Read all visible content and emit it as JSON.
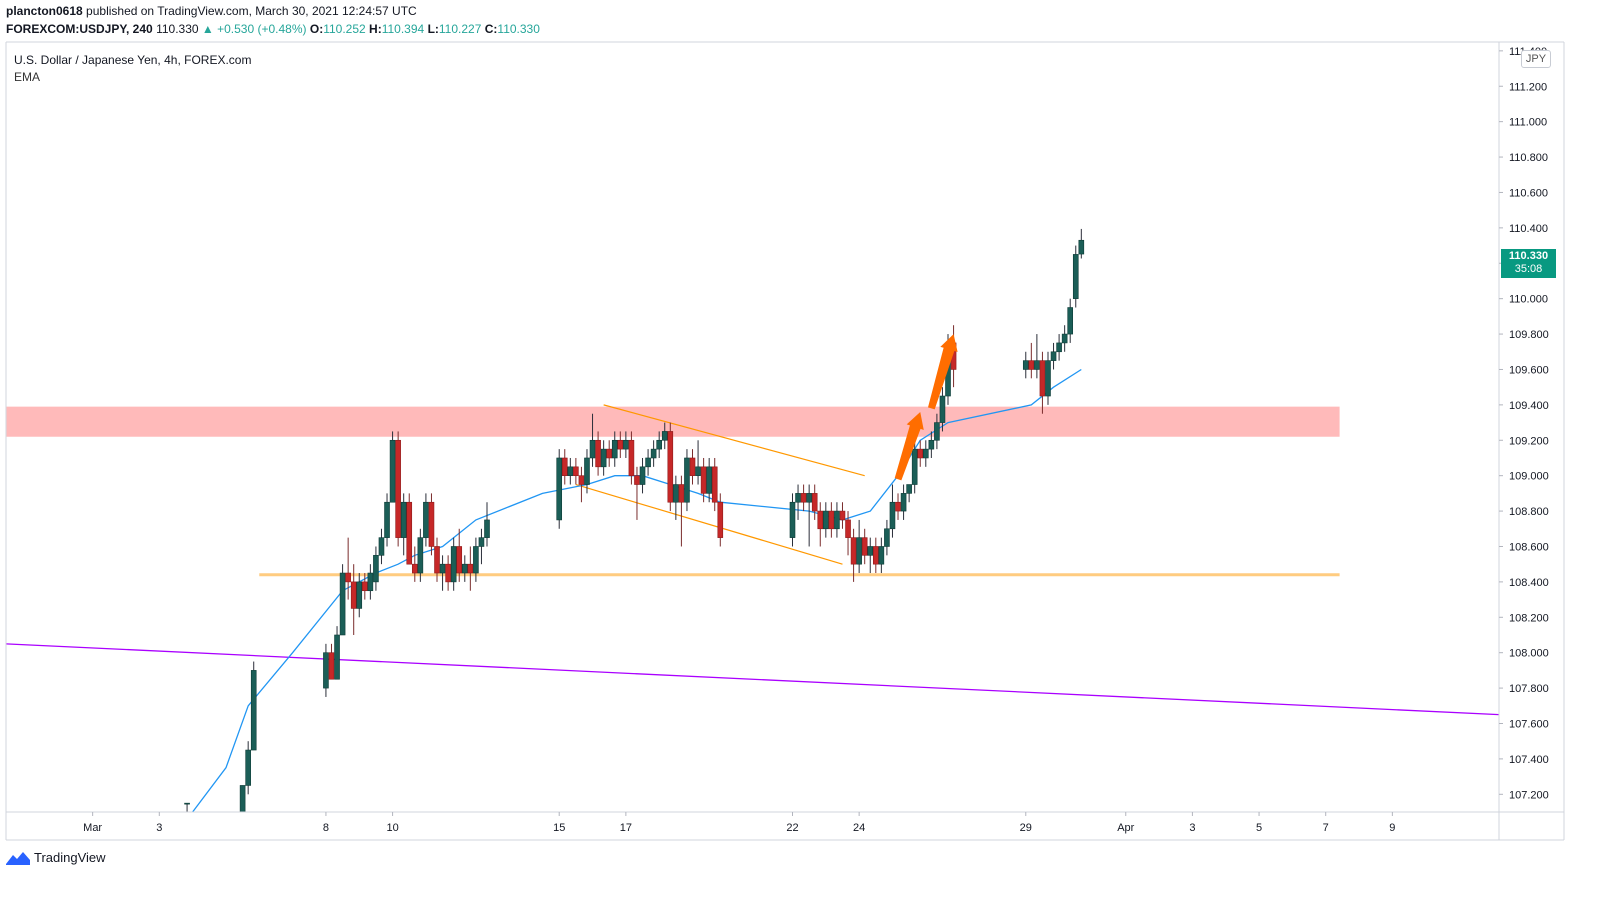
{
  "header": {
    "user": "plancton0618",
    "published": "published on TradingView.com, March 30, 2021 12:24:57 UTC",
    "symbol": "FOREXCOM:USDJPY, 240",
    "last": "110.330",
    "change": "▲ +0.530 (+0.48%)",
    "o_label": "O:",
    "o_value": "110.252",
    "h_label": "H:",
    "h_value": "110.394",
    "l_label": "L:",
    "l_value": "110.227",
    "c_label": "C:",
    "c_value": "110.330"
  },
  "legend": {
    "title": "U.S. Dollar / Japanese Yen, 4h, FOREX.com",
    "indicator": "EMA"
  },
  "currency_badge": "JPY",
  "price_tag": {
    "price": "110.330",
    "countdown": "35:08"
  },
  "footer": {
    "brand": "TradingView"
  },
  "colors": {
    "up": "#26a69a",
    "down": "#ef5350",
    "wick": "#555555",
    "ema": "#2196f3",
    "resistance_zone": "#ffb3b3",
    "support_line": "#ffcc80",
    "trend_line": "#aa00ff",
    "channel": "#ff9800",
    "arrows": "#ff6d00"
  },
  "chart_data": {
    "type": "candlestick",
    "title": "U.S. Dollar / Japanese Yen, 4h, FOREX.com",
    "interval": "4h",
    "ylim": [
      107.1,
      111.45
    ],
    "y_ticks": [
      "111.400",
      "111.200",
      "111.000",
      "110.800",
      "110.600",
      "110.400",
      "110.200",
      "110.000",
      "109.800",
      "109.600",
      "109.400",
      "109.200",
      "109.000",
      "108.800",
      "108.600",
      "108.400",
      "108.200",
      "108.000",
      "107.800",
      "107.600",
      "107.400",
      "107.200"
    ],
    "x_ticks": [
      "Mar",
      "3",
      "8",
      "10",
      "15",
      "17",
      "22",
      "24",
      "29",
      "Apr",
      "3",
      "5",
      "7",
      "9"
    ],
    "x_dates": [
      "2021-03-01",
      "2021-03-03",
      "2021-03-08",
      "2021-03-10",
      "2021-03-15",
      "2021-03-17",
      "2021-03-22",
      "2021-03-24",
      "2021-03-29",
      "2021-04-01",
      "2021-04-03",
      "2021-04-05",
      "2021-04-07",
      "2021-04-09"
    ],
    "candles": [
      {
        "t": "2021-03-03 20:00",
        "o": 107.15,
        "h": 107.15,
        "l": 107.1,
        "c": 107.15
      },
      {
        "t": "2021-03-05 12:00",
        "o": 107.1,
        "h": 107.25,
        "l": 107.1,
        "c": 107.25
      },
      {
        "t": "2021-03-05 16:00",
        "o": 107.25,
        "h": 107.5,
        "l": 107.2,
        "c": 107.45
      },
      {
        "t": "2021-03-05 20:00",
        "o": 107.45,
        "h": 107.95,
        "l": 107.45,
        "c": 107.9
      },
      {
        "t": "2021-03-08 00:00",
        "o": 107.8,
        "h": 108.05,
        "l": 107.75,
        "c": 108.0
      },
      {
        "t": "2021-03-08 04:00",
        "o": 108.0,
        "h": 108.05,
        "l": 107.85,
        "c": 107.85
      },
      {
        "t": "2021-03-08 08:00",
        "o": 107.85,
        "h": 108.15,
        "l": 107.85,
        "c": 108.1
      },
      {
        "t": "2021-03-08 12:00",
        "o": 108.1,
        "h": 108.5,
        "l": 108.1,
        "c": 108.45
      },
      {
        "t": "2021-03-08 16:00",
        "o": 108.45,
        "h": 108.65,
        "l": 108.3,
        "c": 108.4
      },
      {
        "t": "2021-03-08 20:00",
        "o": 108.4,
        "h": 108.5,
        "l": 108.1,
        "c": 108.25
      },
      {
        "t": "2021-03-09 00:00",
        "o": 108.25,
        "h": 108.45,
        "l": 108.2,
        "c": 108.4
      },
      {
        "t": "2021-03-09 04:00",
        "o": 108.4,
        "h": 108.45,
        "l": 108.3,
        "c": 108.35
      },
      {
        "t": "2021-03-09 08:00",
        "o": 108.35,
        "h": 108.5,
        "l": 108.3,
        "c": 108.45
      },
      {
        "t": "2021-03-09 12:00",
        "o": 108.4,
        "h": 108.6,
        "l": 108.35,
        "c": 108.55
      },
      {
        "t": "2021-03-09 16:00",
        "o": 108.55,
        "h": 108.7,
        "l": 108.5,
        "c": 108.65
      },
      {
        "t": "2021-03-09 20:00",
        "o": 108.65,
        "h": 108.9,
        "l": 108.6,
        "c": 108.85
      },
      {
        "t": "2021-03-10 00:00",
        "o": 108.85,
        "h": 109.25,
        "l": 108.85,
        "c": 109.2
      },
      {
        "t": "2021-03-10 04:00",
        "o": 109.2,
        "h": 109.25,
        "l": 108.6,
        "c": 108.65
      },
      {
        "t": "2021-03-10 08:00",
        "o": 108.65,
        "h": 108.9,
        "l": 108.55,
        "c": 108.85
      },
      {
        "t": "2021-03-10 12:00",
        "o": 108.85,
        "h": 108.9,
        "l": 108.5,
        "c": 108.5
      },
      {
        "t": "2021-03-10 16:00",
        "o": 108.5,
        "h": 108.6,
        "l": 108.4,
        "c": 108.45
      },
      {
        "t": "2021-03-10 20:00",
        "o": 108.45,
        "h": 108.7,
        "l": 108.4,
        "c": 108.65
      },
      {
        "t": "2021-03-11 00:00",
        "o": 108.65,
        "h": 108.9,
        "l": 108.6,
        "c": 108.85
      },
      {
        "t": "2021-03-11 04:00",
        "o": 108.85,
        "h": 108.9,
        "l": 108.55,
        "c": 108.6
      },
      {
        "t": "2021-03-11 08:00",
        "o": 108.6,
        "h": 108.65,
        "l": 108.4,
        "c": 108.45
      },
      {
        "t": "2021-03-11 12:00",
        "o": 108.45,
        "h": 108.55,
        "l": 108.35,
        "c": 108.5
      },
      {
        "t": "2021-03-11 16:00",
        "o": 108.5,
        "h": 108.55,
        "l": 108.35,
        "c": 108.4
      },
      {
        "t": "2021-03-11 20:00",
        "o": 108.4,
        "h": 108.65,
        "l": 108.35,
        "c": 108.6
      },
      {
        "t": "2021-03-12 00:00",
        "o": 108.6,
        "h": 108.7,
        "l": 108.4,
        "c": 108.45
      },
      {
        "t": "2021-03-12 04:00",
        "o": 108.45,
        "h": 108.55,
        "l": 108.4,
        "c": 108.5
      },
      {
        "t": "2021-03-12 08:00",
        "o": 108.5,
        "h": 108.6,
        "l": 108.35,
        "c": 108.45
      },
      {
        "t": "2021-03-12 12:00",
        "o": 108.45,
        "h": 108.65,
        "l": 108.4,
        "c": 108.6
      },
      {
        "t": "2021-03-12 16:00",
        "o": 108.6,
        "h": 108.7,
        "l": 108.5,
        "c": 108.65
      },
      {
        "t": "2021-03-12 20:00",
        "o": 108.65,
        "h": 108.85,
        "l": 108.6,
        "c": 108.75
      },
      {
        "t": "2021-03-15 00:00",
        "o": 108.75,
        "h": 109.15,
        "l": 108.7,
        "c": 109.1
      },
      {
        "t": "2021-03-15 04:00",
        "o": 109.1,
        "h": 109.15,
        "l": 108.95,
        "c": 109.0
      },
      {
        "t": "2021-03-15 08:00",
        "o": 109.0,
        "h": 109.1,
        "l": 108.95,
        "c": 109.05
      },
      {
        "t": "2021-03-15 12:00",
        "o": 109.05,
        "h": 109.1,
        "l": 108.95,
        "c": 109.0
      },
      {
        "t": "2021-03-15 16:00",
        "o": 109.0,
        "h": 109.05,
        "l": 108.85,
        "c": 108.95
      },
      {
        "t": "2021-03-15 20:00",
        "o": 108.95,
        "h": 109.15,
        "l": 108.9,
        "c": 109.1
      },
      {
        "t": "2021-03-16 00:00",
        "o": 109.1,
        "h": 109.35,
        "l": 109.05,
        "c": 109.2
      },
      {
        "t": "2021-03-16 04:00",
        "o": 109.2,
        "h": 109.25,
        "l": 109.0,
        "c": 109.05
      },
      {
        "t": "2021-03-16 08:00",
        "o": 109.05,
        "h": 109.2,
        "l": 109.0,
        "c": 109.15
      },
      {
        "t": "2021-03-16 12:00",
        "o": 109.15,
        "h": 109.2,
        "l": 109.05,
        "c": 109.1
      },
      {
        "t": "2021-03-16 16:00",
        "o": 109.1,
        "h": 109.25,
        "l": 109.05,
        "c": 109.2
      },
      {
        "t": "2021-03-16 20:00",
        "o": 109.2,
        "h": 109.25,
        "l": 109.1,
        "c": 109.15
      },
      {
        "t": "2021-03-17 00:00",
        "o": 109.15,
        "h": 109.25,
        "l": 109.1,
        "c": 109.2
      },
      {
        "t": "2021-03-17 04:00",
        "o": 109.2,
        "h": 109.25,
        "l": 108.95,
        "c": 109.0
      },
      {
        "t": "2021-03-17 08:00",
        "o": 109.0,
        "h": 109.05,
        "l": 108.75,
        "c": 108.95
      },
      {
        "t": "2021-03-17 12:00",
        "o": 108.95,
        "h": 109.1,
        "l": 108.9,
        "c": 109.05
      },
      {
        "t": "2021-03-17 16:00",
        "o": 109.05,
        "h": 109.15,
        "l": 109.0,
        "c": 109.1
      },
      {
        "t": "2021-03-17 20:00",
        "o": 109.1,
        "h": 109.2,
        "l": 109.05,
        "c": 109.15
      },
      {
        "t": "2021-03-18 00:00",
        "o": 109.15,
        "h": 109.25,
        "l": 109.1,
        "c": 109.2
      },
      {
        "t": "2021-03-18 04:00",
        "o": 109.2,
        "h": 109.3,
        "l": 109.15,
        "c": 109.25
      },
      {
        "t": "2021-03-18 08:00",
        "o": 109.25,
        "h": 109.3,
        "l": 108.8,
        "c": 108.85
      },
      {
        "t": "2021-03-18 12:00",
        "o": 108.85,
        "h": 109.0,
        "l": 108.75,
        "c": 108.95
      },
      {
        "t": "2021-03-18 16:00",
        "o": 108.95,
        "h": 109.0,
        "l": 108.6,
        "c": 108.85
      },
      {
        "t": "2021-03-18 20:00",
        "o": 108.85,
        "h": 109.15,
        "l": 108.8,
        "c": 109.1
      },
      {
        "t": "2021-03-19 00:00",
        "o": 109.1,
        "h": 109.15,
        "l": 108.95,
        "c": 109.0
      },
      {
        "t": "2021-03-19 04:00",
        "o": 109.0,
        "h": 109.2,
        "l": 108.95,
        "c": 109.05
      },
      {
        "t": "2021-03-19 08:00",
        "o": 109.05,
        "h": 109.1,
        "l": 108.85,
        "c": 108.9
      },
      {
        "t": "2021-03-19 12:00",
        "o": 108.9,
        "h": 109.1,
        "l": 108.85,
        "c": 109.05
      },
      {
        "t": "2021-03-19 16:00",
        "o": 109.05,
        "h": 109.1,
        "l": 108.8,
        "c": 108.85
      },
      {
        "t": "2021-03-19 20:00",
        "o": 108.85,
        "h": 108.9,
        "l": 108.6,
        "c": 108.65
      },
      {
        "t": "2021-03-22 00:00",
        "o": 108.65,
        "h": 108.9,
        "l": 108.6,
        "c": 108.85
      },
      {
        "t": "2021-03-22 04:00",
        "o": 108.85,
        "h": 108.95,
        "l": 108.75,
        "c": 108.9
      },
      {
        "t": "2021-03-22 08:00",
        "o": 108.9,
        "h": 108.95,
        "l": 108.8,
        "c": 108.85
      },
      {
        "t": "2021-03-22 12:00",
        "o": 108.85,
        "h": 108.95,
        "l": 108.6,
        "c": 108.9
      },
      {
        "t": "2021-03-22 16:00",
        "o": 108.9,
        "h": 108.95,
        "l": 108.75,
        "c": 108.8
      },
      {
        "t": "2021-03-22 20:00",
        "o": 108.8,
        "h": 108.85,
        "l": 108.6,
        "c": 108.7
      },
      {
        "t": "2021-03-23 00:00",
        "o": 108.7,
        "h": 108.85,
        "l": 108.65,
        "c": 108.8
      },
      {
        "t": "2021-03-23 04:00",
        "o": 108.8,
        "h": 108.85,
        "l": 108.65,
        "c": 108.7
      },
      {
        "t": "2021-03-23 08:00",
        "o": 108.7,
        "h": 108.85,
        "l": 108.65,
        "c": 108.8
      },
      {
        "t": "2021-03-23 12:00",
        "o": 108.8,
        "h": 108.85,
        "l": 108.7,
        "c": 108.75
      },
      {
        "t": "2021-03-23 16:00",
        "o": 108.75,
        "h": 108.8,
        "l": 108.55,
        "c": 108.65
      },
      {
        "t": "2021-03-23 20:00",
        "o": 108.65,
        "h": 108.7,
        "l": 108.4,
        "c": 108.5
      },
      {
        "t": "2021-03-24 00:00",
        "o": 108.5,
        "h": 108.75,
        "l": 108.45,
        "c": 108.65
      },
      {
        "t": "2021-03-24 04:00",
        "o": 108.65,
        "h": 108.7,
        "l": 108.5,
        "c": 108.55
      },
      {
        "t": "2021-03-24 08:00",
        "o": 108.55,
        "h": 108.65,
        "l": 108.45,
        "c": 108.6
      },
      {
        "t": "2021-03-24 12:00",
        "o": 108.6,
        "h": 108.65,
        "l": 108.45,
        "c": 108.5
      },
      {
        "t": "2021-03-24 16:00",
        "o": 108.5,
        "h": 108.65,
        "l": 108.45,
        "c": 108.6
      },
      {
        "t": "2021-03-24 20:00",
        "o": 108.6,
        "h": 108.75,
        "l": 108.55,
        "c": 108.7
      },
      {
        "t": "2021-03-25 00:00",
        "o": 108.7,
        "h": 108.95,
        "l": 108.65,
        "c": 108.85
      },
      {
        "t": "2021-03-25 04:00",
        "o": 108.85,
        "h": 108.9,
        "l": 108.75,
        "c": 108.8
      },
      {
        "t": "2021-03-25 08:00",
        "o": 108.8,
        "h": 108.95,
        "l": 108.75,
        "c": 108.9
      },
      {
        "t": "2021-03-25 12:00",
        "o": 108.9,
        "h": 108.95,
        "l": 108.85,
        "c": 108.95
      },
      {
        "t": "2021-03-25 16:00",
        "o": 108.95,
        "h": 109.2,
        "l": 108.9,
        "c": 109.15
      },
      {
        "t": "2021-03-25 20:00",
        "o": 109.15,
        "h": 109.2,
        "l": 109.05,
        "c": 109.1
      },
      {
        "t": "2021-03-26 00:00",
        "o": 109.1,
        "h": 109.2,
        "l": 109.05,
        "c": 109.15
      },
      {
        "t": "2021-03-26 04:00",
        "o": 109.15,
        "h": 109.25,
        "l": 109.1,
        "c": 109.2
      },
      {
        "t": "2021-03-26 08:00",
        "o": 109.2,
        "h": 109.35,
        "l": 109.15,
        "c": 109.3
      },
      {
        "t": "2021-03-26 12:00",
        "o": 109.3,
        "h": 109.5,
        "l": 109.25,
        "c": 109.45
      },
      {
        "t": "2021-03-26 16:00",
        "o": 109.45,
        "h": 109.8,
        "l": 109.4,
        "c": 109.75
      },
      {
        "t": "2021-03-26 20:00",
        "o": 109.75,
        "h": 109.85,
        "l": 109.5,
        "c": 109.6
      },
      {
        "t": "2021-03-29 00:00",
        "o": 109.6,
        "h": 109.7,
        "l": 109.55,
        "c": 109.65
      },
      {
        "t": "2021-03-29 04:00",
        "o": 109.65,
        "h": 109.75,
        "l": 109.55,
        "c": 109.6
      },
      {
        "t": "2021-03-29 08:00",
        "o": 109.6,
        "h": 109.8,
        "l": 109.55,
        "c": 109.65
      },
      {
        "t": "2021-03-29 12:00",
        "o": 109.65,
        "h": 109.7,
        "l": 109.35,
        "c": 109.45
      },
      {
        "t": "2021-03-29 16:00",
        "o": 109.45,
        "h": 109.7,
        "l": 109.4,
        "c": 109.65
      },
      {
        "t": "2021-03-29 20:00",
        "o": 109.65,
        "h": 109.75,
        "l": 109.6,
        "c": 109.7
      },
      {
        "t": "2021-03-30 00:00",
        "o": 109.7,
        "h": 109.8,
        "l": 109.65,
        "c": 109.75
      },
      {
        "t": "2021-03-30 04:00",
        "o": 109.75,
        "h": 109.85,
        "l": 109.7,
        "c": 109.8
      },
      {
        "t": "2021-03-30 08:00",
        "o": 109.8,
        "h": 110.0,
        "l": 109.75,
        "c": 109.95
      },
      {
        "t": "2021-03-30 12:00",
        "o": 110.0,
        "h": 110.3,
        "l": 109.95,
        "c": 110.25
      },
      {
        "t": "2021-03-30 16:00",
        "o": 110.252,
        "h": 110.394,
        "l": 110.227,
        "c": 110.33
      }
    ],
    "ema": [
      [
        107.05,
        107.1
      ],
      [
        107.2,
        107.35
      ],
      [
        107.4,
        107.7
      ],
      [
        107.7,
        108.0
      ],
      [
        108.05,
        108.35
      ],
      [
        108.45,
        108.45
      ],
      [
        108.5,
        108.5
      ],
      [
        108.6,
        108.55
      ],
      [
        108.75,
        108.6
      ],
      [
        108.9,
        108.75
      ],
      [
        109.0,
        108.9
      ],
      [
        109.05,
        108.95
      ],
      [
        109.1,
        109.0
      ],
      [
        109.15,
        109.0
      ],
      [
        109.2,
        108.95
      ],
      [
        109.4,
        108.9
      ],
      [
        109.6,
        108.85
      ],
      [
        109.8,
        108.8
      ],
      [
        110.0,
        108.75
      ],
      [
        110.15,
        108.8
      ],
      [
        110.25,
        109.0
      ],
      [
        110.35,
        109.2
      ],
      [
        110.45,
        109.3
      ],
      [
        110.55,
        109.4
      ],
      [
        110.6,
        109.5
      ],
      [
        110.7,
        109.6
      ]
    ],
    "resistance_zone": [
      109.22,
      109.39
    ],
    "support_level": 108.44,
    "trend_line": [
      [
        107.3,
        108.05
      ],
      [
        111.45,
        107.65
      ]
    ],
    "channel_upper": [
      [
        109.25,
        109.4
      ],
      [
        109.55,
        109.0
      ]
    ],
    "channel_lower": [
      [
        109.2,
        108.95
      ],
      [
        109.45,
        108.5
      ]
    ],
    "arrows": [
      [
        [
          109.72,
          109.25
        ],
        [
          109.89,
          109.36
        ]
      ],
      [
        [
          109.88,
          109.65
        ],
        [
          109.99,
          109.8
        ]
      ]
    ]
  }
}
